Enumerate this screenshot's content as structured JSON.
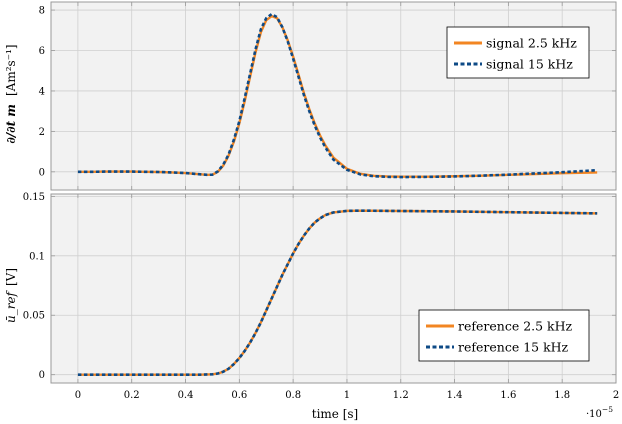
{
  "chart_data": [
    {
      "type": "line",
      "panel": "top",
      "ylabel_math": "∂/∂t m",
      "ylabel_unit": "[Am²s⁻¹]",
      "ylim": [
        -0.9,
        8.4
      ],
      "yticks": [
        0,
        2,
        4,
        6,
        8
      ],
      "grid": true,
      "legend_position": "top-right",
      "series": [
        {
          "name": "signal 2.5 kHz",
          "color": "#F28522",
          "style": "solid",
          "x": [
            0,
            0.05,
            0.1,
            0.15,
            0.2,
            0.25,
            0.3,
            0.35,
            0.4,
            0.45,
            0.48,
            0.5,
            0.52,
            0.54,
            0.56,
            0.58,
            0.6,
            0.62,
            0.64,
            0.66,
            0.68,
            0.7,
            0.72,
            0.74,
            0.76,
            0.78,
            0.8,
            0.82,
            0.84,
            0.86,
            0.88,
            0.9,
            0.92,
            0.95,
            1.0,
            1.05,
            1.1,
            1.15,
            1.2,
            1.3,
            1.4,
            1.5,
            1.6,
            1.7,
            1.8,
            1.93
          ],
          "y": [
            0.0,
            0.0,
            0.01,
            0.01,
            0.01,
            0.0,
            -0.01,
            -0.03,
            -0.06,
            -0.12,
            -0.15,
            -0.14,
            0.0,
            0.3,
            0.8,
            1.5,
            2.4,
            3.5,
            4.7,
            5.9,
            6.9,
            7.5,
            7.7,
            7.6,
            7.15,
            6.5,
            5.7,
            4.8,
            3.9,
            3.1,
            2.4,
            1.8,
            1.3,
            0.7,
            0.15,
            -0.1,
            -0.2,
            -0.23,
            -0.24,
            -0.24,
            -0.22,
            -0.19,
            -0.15,
            -0.11,
            -0.07,
            -0.03
          ]
        },
        {
          "name": "signal 15 kHz",
          "color": "#0E4A86",
          "style": "dashed",
          "x": [
            0,
            0.05,
            0.1,
            0.15,
            0.2,
            0.25,
            0.3,
            0.35,
            0.4,
            0.45,
            0.48,
            0.5,
            0.52,
            0.54,
            0.56,
            0.58,
            0.6,
            0.62,
            0.64,
            0.66,
            0.68,
            0.7,
            0.72,
            0.74,
            0.76,
            0.78,
            0.8,
            0.82,
            0.84,
            0.86,
            0.88,
            0.9,
            0.92,
            0.95,
            1.0,
            1.05,
            1.1,
            1.15,
            1.2,
            1.3,
            1.4,
            1.5,
            1.6,
            1.7,
            1.8,
            1.93
          ],
          "y": [
            0.0,
            0.0,
            0.01,
            0.01,
            0.01,
            0.0,
            -0.01,
            -0.03,
            -0.06,
            -0.12,
            -0.15,
            -0.14,
            0.02,
            0.35,
            0.85,
            1.6,
            2.5,
            3.65,
            4.85,
            6.05,
            7.05,
            7.6,
            7.8,
            7.65,
            7.15,
            6.45,
            5.6,
            4.7,
            3.8,
            3.0,
            2.3,
            1.7,
            1.2,
            0.6,
            0.1,
            -0.13,
            -0.22,
            -0.25,
            -0.26,
            -0.25,
            -0.23,
            -0.19,
            -0.14,
            -0.08,
            -0.02,
            0.08
          ]
        }
      ]
    },
    {
      "type": "line",
      "panel": "bottom",
      "ylabel_math": "ū_ref",
      "ylabel_unit": "[V]",
      "ylim": [
        -0.007,
        0.152
      ],
      "yticks": [
        0,
        0.05,
        0.1,
        0.15
      ],
      "grid": true,
      "legend_position": "bottom-right",
      "series": [
        {
          "name": "reference 2.5 kHz",
          "color": "#F28522",
          "style": "solid",
          "x": [
            0,
            0.1,
            0.2,
            0.3,
            0.4,
            0.45,
            0.5,
            0.52,
            0.54,
            0.56,
            0.58,
            0.6,
            0.62,
            0.64,
            0.66,
            0.68,
            0.7,
            0.72,
            0.74,
            0.76,
            0.78,
            0.8,
            0.82,
            0.84,
            0.86,
            0.88,
            0.9,
            0.92,
            0.95,
            1.0,
            1.05,
            1.1,
            1.2,
            1.3,
            1.4,
            1.5,
            1.6,
            1.7,
            1.8,
            1.93
          ],
          "y": [
            0.0,
            0.0,
            0.0,
            0.0,
            0.0,
            0.0,
            0.0003,
            0.001,
            0.0025,
            0.005,
            0.009,
            0.014,
            0.02,
            0.027,
            0.035,
            0.044,
            0.054,
            0.064,
            0.074,
            0.084,
            0.093,
            0.102,
            0.11,
            0.117,
            0.123,
            0.128,
            0.1315,
            0.1343,
            0.1365,
            0.1378,
            0.138,
            0.1379,
            0.1377,
            0.1375,
            0.1373,
            0.137,
            0.1367,
            0.1364,
            0.1361,
            0.1357
          ]
        },
        {
          "name": "reference 15 kHz",
          "color": "#0E4A86",
          "style": "dashed",
          "x": [
            0,
            0.1,
            0.2,
            0.3,
            0.4,
            0.45,
            0.5,
            0.52,
            0.54,
            0.56,
            0.58,
            0.6,
            0.62,
            0.64,
            0.66,
            0.68,
            0.7,
            0.72,
            0.74,
            0.76,
            0.78,
            0.8,
            0.82,
            0.84,
            0.86,
            0.88,
            0.9,
            0.92,
            0.95,
            1.0,
            1.05,
            1.1,
            1.2,
            1.3,
            1.4,
            1.5,
            1.6,
            1.7,
            1.8,
            1.93
          ],
          "y": [
            0.0,
            0.0,
            0.0,
            0.0,
            0.0,
            0.0,
            0.0003,
            0.001,
            0.0025,
            0.005,
            0.009,
            0.014,
            0.02,
            0.027,
            0.035,
            0.044,
            0.054,
            0.064,
            0.074,
            0.084,
            0.093,
            0.102,
            0.11,
            0.117,
            0.123,
            0.128,
            0.1315,
            0.1343,
            0.1365,
            0.1378,
            0.138,
            0.1379,
            0.1377,
            0.1375,
            0.1373,
            0.137,
            0.1367,
            0.1364,
            0.1361,
            0.1357
          ]
        }
      ]
    }
  ],
  "x_axis": {
    "label": "time [s]",
    "multiplier_base": "·10",
    "multiplier_exp": "−5",
    "xlim": [
      -0.1,
      2.0
    ],
    "ticks": [
      0,
      0.2,
      0.4,
      0.6,
      0.8,
      1,
      1.2,
      1.4,
      1.6,
      1.8,
      2
    ]
  },
  "style": {
    "panel_background": "#F2F2F2",
    "grid_color": "#CFCFCF",
    "axis_color": "#999999"
  }
}
